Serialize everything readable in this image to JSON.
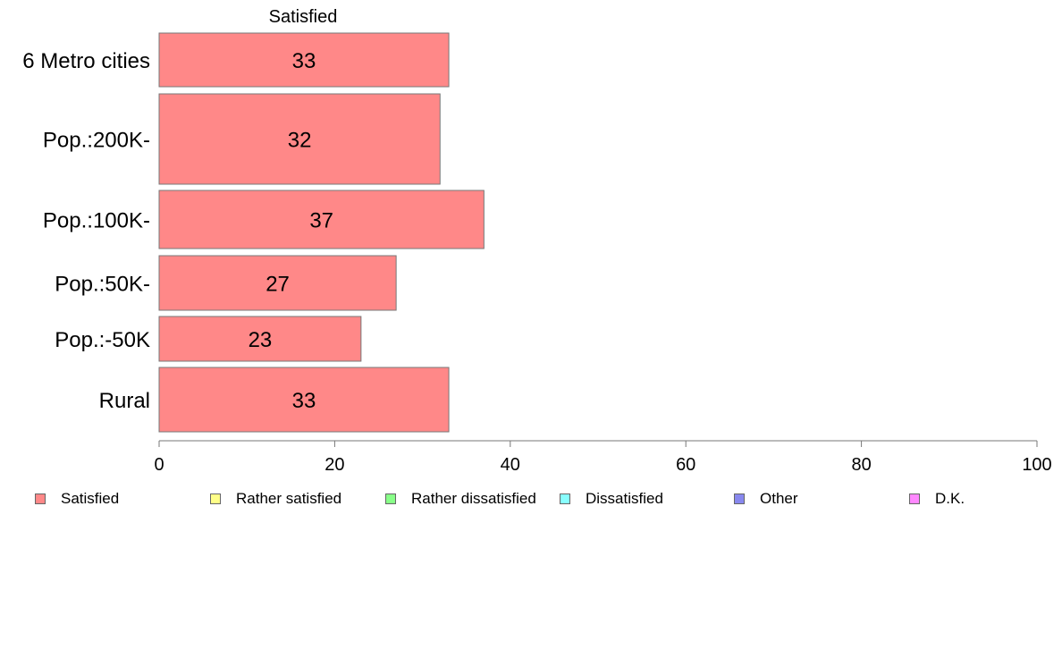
{
  "chart_data": {
    "type": "bar",
    "orientation": "horizontal",
    "title": "Satisfied",
    "categories": [
      "6 Metro cities",
      "Pop.:200K-",
      "Pop.:100K-",
      "Pop.:50K-",
      "Pop.:-50K",
      "Rural"
    ],
    "series": [
      {
        "name": "Satisfied",
        "values": [
          33,
          32,
          37,
          27,
          23,
          33
        ],
        "color": "#ff8888"
      }
    ],
    "data_labels": [
      "33",
      "32",
      "37",
      "27",
      "23",
      "33"
    ],
    "x_ticks": [
      0,
      20,
      40,
      60,
      80,
      100
    ],
    "xlim": [
      0,
      100
    ],
    "grid": false,
    "legend_position": "bottom"
  },
  "legend": {
    "items": [
      {
        "label": "Satisfied",
        "color": "#ff8888"
      },
      {
        "label": "Rather satisfied",
        "color": "#ffff88"
      },
      {
        "label": "Rather dissatisfied",
        "color": "#88ff88"
      },
      {
        "label": "Dissatisfied",
        "color": "#88ffff"
      },
      {
        "label": "Other",
        "color": "#8888ee"
      },
      {
        "label": "D.K.",
        "color": "#ff88ff"
      }
    ]
  }
}
